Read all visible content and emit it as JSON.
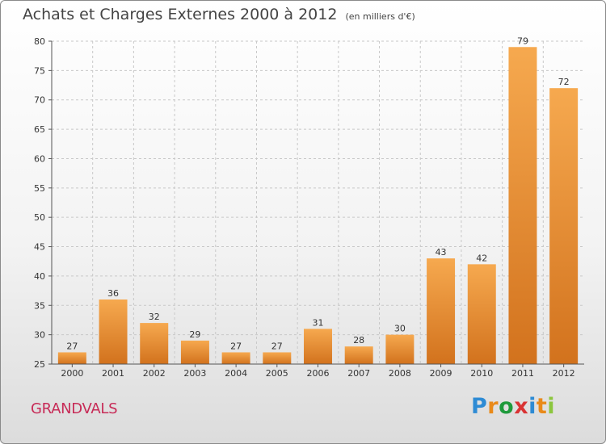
{
  "title": "Achats et Charges Externes 2000 à 2012",
  "subtitle": "(en milliers d'€)",
  "place": "GRANDVALS",
  "logo": {
    "letters": [
      "P",
      "r",
      "o",
      "x",
      "i",
      "t",
      "i"
    ],
    "colors": [
      "#2e8bd4",
      "#e98a1a",
      "#1f9a3c",
      "#d93434",
      "#2e8bd4",
      "#e98a1a",
      "#8cc63e"
    ]
  },
  "colors": {
    "bar_light": "#f6a94f",
    "bar_dark": "#d2721d",
    "grid": "#c8c8c8"
  },
  "chart_data": {
    "type": "bar",
    "title": "Achats et Charges Externes 2000 à 2012",
    "subtitle": "(en milliers d'€)",
    "categories": [
      "2000",
      "2001",
      "2002",
      "2003",
      "2004",
      "2005",
      "2006",
      "2007",
      "2008",
      "2009",
      "2010",
      "2011",
      "2012"
    ],
    "values": [
      27,
      36,
      32,
      29,
      27,
      27,
      31,
      28,
      30,
      43,
      42,
      79,
      72
    ],
    "ylim": [
      25,
      80
    ],
    "yticks": [
      25,
      30,
      35,
      40,
      45,
      50,
      55,
      60,
      65,
      70,
      75,
      80
    ],
    "grid": true,
    "xlabel": "",
    "ylabel": ""
  }
}
